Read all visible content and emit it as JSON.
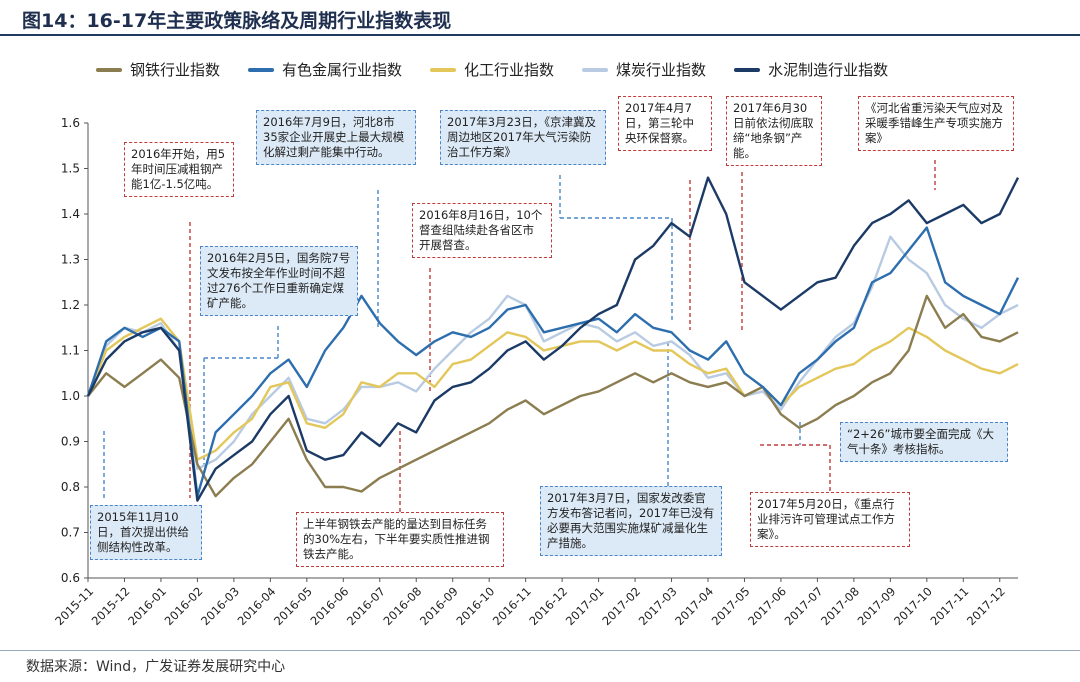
{
  "title": "图14：16-17年主要政策脉络及周期行业指数表现",
  "source": "数据来源：Wind，广发证券发展研究中心",
  "chart_data": {
    "type": "line",
    "ylim": [
      0.6,
      1.6
    ],
    "yticks": [
      "0.6",
      "0.7",
      "0.8",
      "0.9",
      "1.0",
      "1.1",
      "1.2",
      "1.3",
      "1.4",
      "1.5",
      "1.6"
    ],
    "xticks": [
      "2015-11",
      "2015-12",
      "2016-01",
      "2016-02",
      "2016-03",
      "2016-04",
      "2016-05",
      "2016-06",
      "2016-07",
      "2016-08",
      "2016-09",
      "2016-10",
      "2016-11",
      "2016-12",
      "2017-01",
      "2017-02",
      "2017-03",
      "2017-04",
      "2017-05",
      "2017-06",
      "2017-07",
      "2017-08",
      "2017-09",
      "2017-10",
      "2017-11",
      "2017-12"
    ],
    "x": [
      0,
      0.5,
      1,
      1.5,
      2,
      2.5,
      3,
      3.5,
      4,
      4.5,
      5,
      5.5,
      6,
      6.5,
      7,
      7.5,
      8,
      8.5,
      9,
      9.5,
      10,
      10.5,
      11,
      11.5,
      12,
      12.5,
      13,
      13.5,
      14,
      14.5,
      15,
      15.5,
      16,
      16.5,
      17,
      17.5,
      18,
      18.5,
      19,
      19.5,
      20,
      20.5,
      21,
      21.5,
      22,
      22.5,
      23,
      23.5,
      24,
      24.5,
      25,
      25.5
    ],
    "series": [
      {
        "name": "钢铁行业指数",
        "color": "#8b7d4f",
        "values": [
          1.0,
          1.05,
          1.02,
          1.05,
          1.08,
          1.04,
          0.85,
          0.78,
          0.82,
          0.85,
          0.9,
          0.95,
          0.86,
          0.8,
          0.8,
          0.79,
          0.82,
          0.84,
          0.86,
          0.88,
          0.9,
          0.92,
          0.94,
          0.97,
          0.99,
          0.96,
          0.98,
          1.0,
          1.01,
          1.03,
          1.05,
          1.03,
          1.05,
          1.03,
          1.02,
          1.03,
          1.0,
          1.02,
          0.96,
          0.93,
          0.95,
          0.98,
          1.0,
          1.03,
          1.05,
          1.1,
          1.22,
          1.15,
          1.18,
          1.13,
          1.12,
          1.14
        ]
      },
      {
        "name": "有色金属行业指数",
        "color": "#2d6eae",
        "values": [
          1.0,
          1.12,
          1.15,
          1.13,
          1.15,
          1.12,
          0.78,
          0.92,
          0.96,
          1.0,
          1.05,
          1.08,
          1.02,
          1.1,
          1.15,
          1.22,
          1.16,
          1.12,
          1.09,
          1.12,
          1.14,
          1.13,
          1.15,
          1.19,
          1.2,
          1.14,
          1.15,
          1.16,
          1.17,
          1.14,
          1.18,
          1.15,
          1.14,
          1.1,
          1.08,
          1.12,
          1.05,
          1.02,
          0.98,
          1.05,
          1.08,
          1.12,
          1.15,
          1.25,
          1.27,
          1.32,
          1.37,
          1.25,
          1.22,
          1.2,
          1.18,
          1.26
        ]
      },
      {
        "name": "化工行业指数",
        "color": "#e3c75a",
        "values": [
          1.0,
          1.1,
          1.13,
          1.15,
          1.17,
          1.12,
          0.86,
          0.88,
          0.92,
          0.95,
          1.02,
          1.03,
          0.94,
          0.93,
          0.96,
          1.03,
          1.02,
          1.05,
          1.05,
          1.02,
          1.07,
          1.08,
          1.11,
          1.14,
          1.13,
          1.1,
          1.11,
          1.12,
          1.12,
          1.1,
          1.12,
          1.1,
          1.1,
          1.07,
          1.05,
          1.06,
          1.0,
          1.02,
          0.98,
          1.02,
          1.04,
          1.06,
          1.07,
          1.1,
          1.12,
          1.15,
          1.13,
          1.1,
          1.08,
          1.06,
          1.05,
          1.07
        ]
      },
      {
        "name": "煤炭行业指数",
        "color": "#b8cbe2",
        "values": [
          1.0,
          1.11,
          1.15,
          1.14,
          1.16,
          1.1,
          0.84,
          0.86,
          0.9,
          0.96,
          1.0,
          1.04,
          0.95,
          0.94,
          0.97,
          1.02,
          1.02,
          1.03,
          1.01,
          1.06,
          1.1,
          1.14,
          1.17,
          1.22,
          1.2,
          1.12,
          1.14,
          1.16,
          1.15,
          1.12,
          1.14,
          1.11,
          1.12,
          1.09,
          1.04,
          1.05,
          1.0,
          1.01,
          0.97,
          1.03,
          1.08,
          1.13,
          1.16,
          1.24,
          1.35,
          1.3,
          1.27,
          1.2,
          1.17,
          1.15,
          1.18,
          1.2
        ]
      },
      {
        "name": "水泥制造行业指数",
        "color": "#1b3a66",
        "values": [
          1.0,
          1.08,
          1.12,
          1.14,
          1.15,
          1.1,
          0.77,
          0.84,
          0.87,
          0.9,
          0.96,
          1.0,
          0.88,
          0.86,
          0.87,
          0.92,
          0.89,
          0.94,
          0.92,
          0.99,
          1.02,
          1.03,
          1.06,
          1.1,
          1.12,
          1.08,
          1.11,
          1.15,
          1.18,
          1.2,
          1.3,
          1.33,
          1.38,
          1.35,
          1.48,
          1.4,
          1.25,
          1.22,
          1.19,
          1.22,
          1.25,
          1.26,
          1.33,
          1.38,
          1.4,
          1.43,
          1.38,
          1.4,
          1.42,
          1.38,
          1.4,
          1.48
        ]
      }
    ],
    "annotations": [
      {
        "text": "2016年开始，用5年时间压减粗钢产能1亿-1.5亿吨。",
        "style": "red"
      },
      {
        "text": "2015年11月10日，首次提出供给侧结构性改革。",
        "style": "blue"
      },
      {
        "text": "2016年2月5日，国务院7号文发布按全年作业时间不超过276个工作日重新确定煤矿产能。",
        "style": "blue"
      },
      {
        "text": "2016年7月9日，河北8市35家企业开展史上最大规模化解过剩产能集中行动。",
        "style": "blue"
      },
      {
        "text": "2016年8月16日，10个督查组陆续赴各省区市开展督查。",
        "style": "red"
      },
      {
        "text": "上半年钢铁去产能的量达到目标任务的30%左右，下半年要实质性推进钢铁去产能。",
        "style": "red"
      },
      {
        "text": "2017年3月23日，《京津冀及周边地区2017年大气污染防治工作方案》",
        "style": "blue"
      },
      {
        "text": "2017年4月7日，第三轮中央环保督察。",
        "style": "red"
      },
      {
        "text": "2017年6月30日前依法彻底取缔“地条钢”产能。",
        "style": "red"
      },
      {
        "text": "《河北省重污染天气应对及采暖季错峰生产专项实施方案》",
        "style": "red"
      },
      {
        "text": "2017年3月7日，国家发改委官方发布答记者问，2017年已没有必要再大范围实施煤矿减量化生产措施。",
        "style": "blue"
      },
      {
        "text": "“2+26”城市要全面完成《大气十条》考核指标。",
        "style": "blue"
      },
      {
        "text": "2017年5月20日，《重点行业排污许可管理试点工作方案》。",
        "style": "red"
      }
    ]
  }
}
